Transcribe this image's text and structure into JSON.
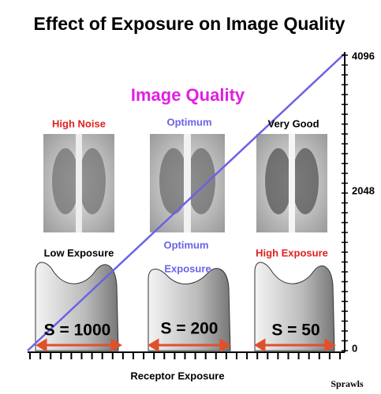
{
  "title": "Effect of Exposure on Image Quality",
  "quality_heading": "Image Quality",
  "axis": {
    "ticks": [
      4096,
      2048,
      0
    ],
    "x_label": "Receptor Exposure"
  },
  "panels": [
    {
      "quality": "High Noise",
      "exposure": "Low Exposure",
      "s_value": "S = 1000"
    },
    {
      "quality": "Optimum",
      "exposure": [
        "Optimum",
        "Exposure"
      ],
      "s_value": "S = 200"
    },
    {
      "quality": "Very Good",
      "exposure": "High Exposure",
      "s_value": "S = 50"
    }
  ],
  "credit": "Sprawls"
}
